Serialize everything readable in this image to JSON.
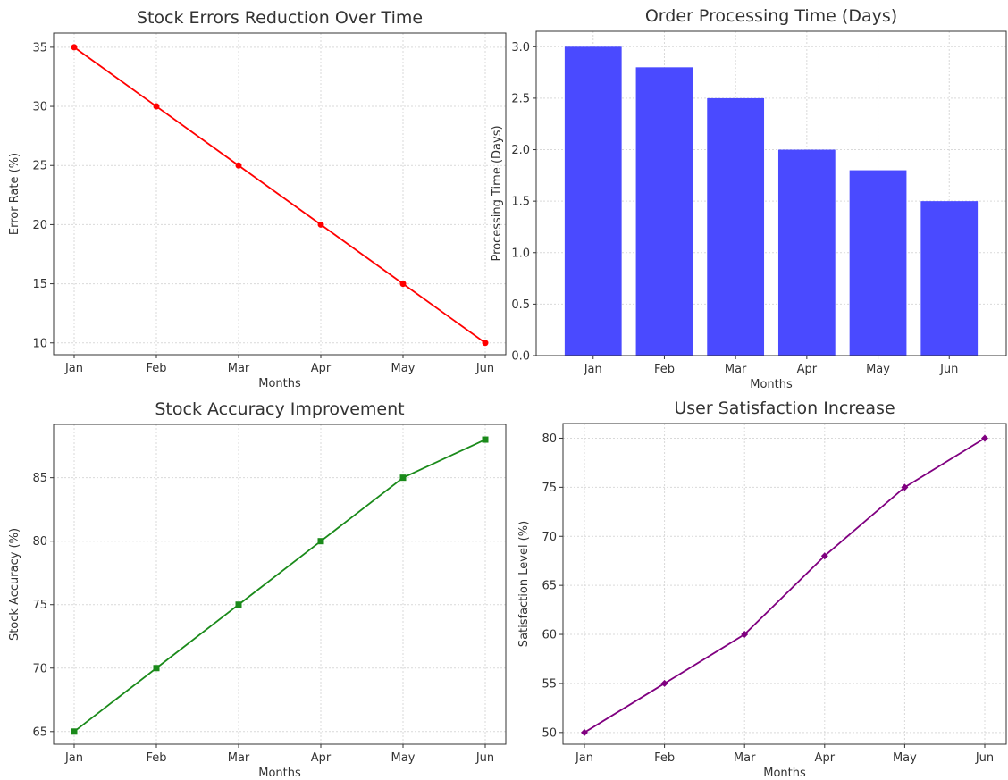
{
  "chart_data": [
    {
      "type": "line",
      "title": "Stock Errors Reduction Over Time",
      "xlabel": "Months",
      "ylabel": "Error Rate (%)",
      "categories": [
        "Jan",
        "Feb",
        "Mar",
        "Apr",
        "May",
        "Jun"
      ],
      "series": [
        {
          "values": [
            35,
            30,
            25,
            20,
            15,
            10
          ],
          "color": "#ff0000",
          "marker": "circle"
        }
      ],
      "ylim": [
        9.0,
        36.2
      ],
      "yticks": [
        10,
        15,
        20,
        25,
        30,
        35
      ],
      "grid": true
    },
    {
      "type": "bar",
      "title": "Order Processing Time (Days)",
      "xlabel": "Months",
      "ylabel": "Processing Time (Days)",
      "categories": [
        "Jan",
        "Feb",
        "Mar",
        "Apr",
        "May",
        "Jun"
      ],
      "values": [
        3.0,
        2.8,
        2.5,
        2.0,
        1.8,
        1.5
      ],
      "color": "#4a4aff",
      "ylim": [
        0,
        3.15
      ],
      "yticks": [
        "0.0",
        "0.5",
        "1.0",
        "1.5",
        "2.0",
        "2.5",
        "3.0"
      ],
      "grid": true
    },
    {
      "type": "line",
      "title": "Stock Accuracy Improvement",
      "xlabel": "Months",
      "ylabel": "Stock Accuracy (%)",
      "categories": [
        "Jan",
        "Feb",
        "Mar",
        "Apr",
        "May",
        "Jun"
      ],
      "series": [
        {
          "values": [
            65,
            70,
            75,
            80,
            85,
            88
          ],
          "color": "#1a8a1a",
          "marker": "square"
        }
      ],
      "ylim": [
        64.0,
        89.2
      ],
      "yticks": [
        65,
        70,
        75,
        80,
        85
      ],
      "grid": true
    },
    {
      "type": "line",
      "title": "User Satisfaction Increase",
      "xlabel": "Months",
      "ylabel": "Satisfaction Level (%)",
      "categories": [
        "Jan",
        "Feb",
        "Mar",
        "Apr",
        "May",
        "Jun"
      ],
      "series": [
        {
          "values": [
            50,
            55,
            60,
            68,
            75,
            80
          ],
          "color": "#800080",
          "marker": "diamond"
        }
      ],
      "ylim": [
        48.8,
        81.5
      ],
      "yticks": [
        50,
        55,
        60,
        65,
        70,
        75,
        80
      ],
      "grid": true
    }
  ]
}
